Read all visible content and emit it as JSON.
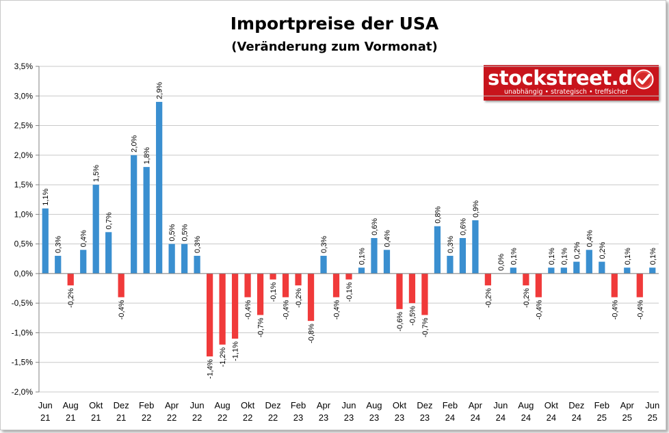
{
  "title": "Importpreise der USA",
  "subtitle": "(Veränderung zum Vormonat)",
  "logo": {
    "text": "stockstreet.de",
    "tagline": "unabhängig • strategisch • treffsicher"
  },
  "colors": {
    "positive": "#3a8fd0",
    "negative": "#f03a3a",
    "grid": "#c8c8c8"
  },
  "chart_data": {
    "type": "bar",
    "ylim": [
      -2.0,
      3.5
    ],
    "yticks": [
      3.5,
      3.0,
      2.5,
      2.0,
      1.5,
      1.0,
      0.5,
      0.0,
      -0.5,
      -1.0,
      -1.5,
      -2.0
    ],
    "ytick_labels": [
      "3,5%",
      "3,0%",
      "2,5%",
      "2,0%",
      "1,5%",
      "1,0%",
      "0,5%",
      "0,0%",
      "-0,5%",
      "-1,0%",
      "-1,5%",
      "-2,0%"
    ],
    "grid": true,
    "categories": [
      "2021-06",
      "2021-07",
      "2021-08",
      "2021-09",
      "2021-10",
      "2021-11",
      "2021-12",
      "2022-01",
      "2022-02",
      "2022-03",
      "2022-04",
      "2022-05",
      "2022-06",
      "2022-07",
      "2022-08",
      "2022-09",
      "2022-10",
      "2022-11",
      "2022-12",
      "2023-01",
      "2023-02",
      "2023-03",
      "2023-04",
      "2023-05",
      "2023-06",
      "2023-07",
      "2023-08",
      "2023-09",
      "2023-10",
      "2023-11",
      "2023-12",
      "2024-01",
      "2024-02",
      "2024-03",
      "2024-04",
      "2024-05",
      "2024-06",
      "2024-07",
      "2024-08",
      "2024-09",
      "2024-10",
      "2024-11",
      "2024-12",
      "2025-01",
      "2025-02",
      "2025-03",
      "2025-04",
      "2025-05",
      "2025-06"
    ],
    "values": [
      1.1,
      0.3,
      -0.2,
      0.4,
      1.5,
      0.7,
      -0.4,
      2.0,
      1.8,
      2.9,
      0.5,
      0.5,
      0.3,
      -1.4,
      -1.2,
      -1.1,
      -0.4,
      -0.7,
      -0.1,
      -0.4,
      -0.2,
      -0.8,
      0.3,
      -0.4,
      -0.1,
      0.1,
      0.6,
      0.4,
      -0.6,
      -0.5,
      -0.7,
      0.8,
      0.3,
      0.6,
      0.9,
      -0.2,
      0.0,
      0.1,
      -0.2,
      -0.4,
      0.1,
      0.1,
      0.2,
      0.4,
      0.2,
      -0.4,
      0.1,
      -0.4,
      0.1
    ],
    "data_labels": [
      "1,1%",
      "0,3%",
      "-0,2%",
      "0,4%",
      "1,5%",
      "0,7%",
      "-0,4%",
      "2,0%",
      "1,8%",
      "2,9%",
      "0,5%",
      "0,5%",
      "0,3%",
      "-1,4%",
      "-1,2%",
      "-1,1%",
      "-0,4%",
      "-0,7%",
      "-0,1%",
      "-0,4%",
      "-0,2%",
      "-0,8%",
      "0,3%",
      "-0,4%",
      "-0,1%",
      "0,1%",
      "0,6%",
      "0,4%",
      "-0,6%",
      "-0,5%",
      "-0,7%",
      "0,8%",
      "0,3%",
      "0,6%",
      "0,9%",
      "-0,2%",
      "0,0%",
      "0,1%",
      "-0,2%",
      "-0,4%",
      "0,1%",
      "0,1%",
      "0,2%",
      "0,4%",
      "0,2%",
      "-0,4%",
      "0,1%",
      "-0,4%",
      "0,1%"
    ],
    "x_tick_labels": [
      {
        "index": 0,
        "month": "Jun",
        "year": "21"
      },
      {
        "index": 2,
        "month": "Aug",
        "year": "21"
      },
      {
        "index": 4,
        "month": "Okt",
        "year": "21"
      },
      {
        "index": 6,
        "month": "Dez",
        "year": "21"
      },
      {
        "index": 8,
        "month": "Feb",
        "year": "22"
      },
      {
        "index": 10,
        "month": "Apr",
        "year": "22"
      },
      {
        "index": 12,
        "month": "Jun",
        "year": "22"
      },
      {
        "index": 14,
        "month": "Aug",
        "year": "22"
      },
      {
        "index": 16,
        "month": "Okt",
        "year": "22"
      },
      {
        "index": 18,
        "month": "Dez",
        "year": "22"
      },
      {
        "index": 20,
        "month": "Feb",
        "year": "23"
      },
      {
        "index": 22,
        "month": "Apr",
        "year": "23"
      },
      {
        "index": 24,
        "month": "Jun",
        "year": "23"
      },
      {
        "index": 26,
        "month": "Aug",
        "year": "23"
      },
      {
        "index": 28,
        "month": "Okt",
        "year": "23"
      },
      {
        "index": 30,
        "month": "Dez",
        "year": "23"
      },
      {
        "index": 32,
        "month": "Feb",
        "year": "24"
      },
      {
        "index": 34,
        "month": "Apr",
        "year": "24"
      },
      {
        "index": 36,
        "month": "Jun",
        "year": "24"
      },
      {
        "index": 38,
        "month": "Aug",
        "year": "24"
      },
      {
        "index": 40,
        "month": "Okt",
        "year": "24"
      },
      {
        "index": 42,
        "month": "Dez",
        "year": "24"
      },
      {
        "index": 44,
        "month": "Feb",
        "year": "25"
      },
      {
        "index": 46,
        "month": "Apr",
        "year": "25"
      },
      {
        "index": 48,
        "month": "Jun",
        "year": "25"
      }
    ]
  }
}
